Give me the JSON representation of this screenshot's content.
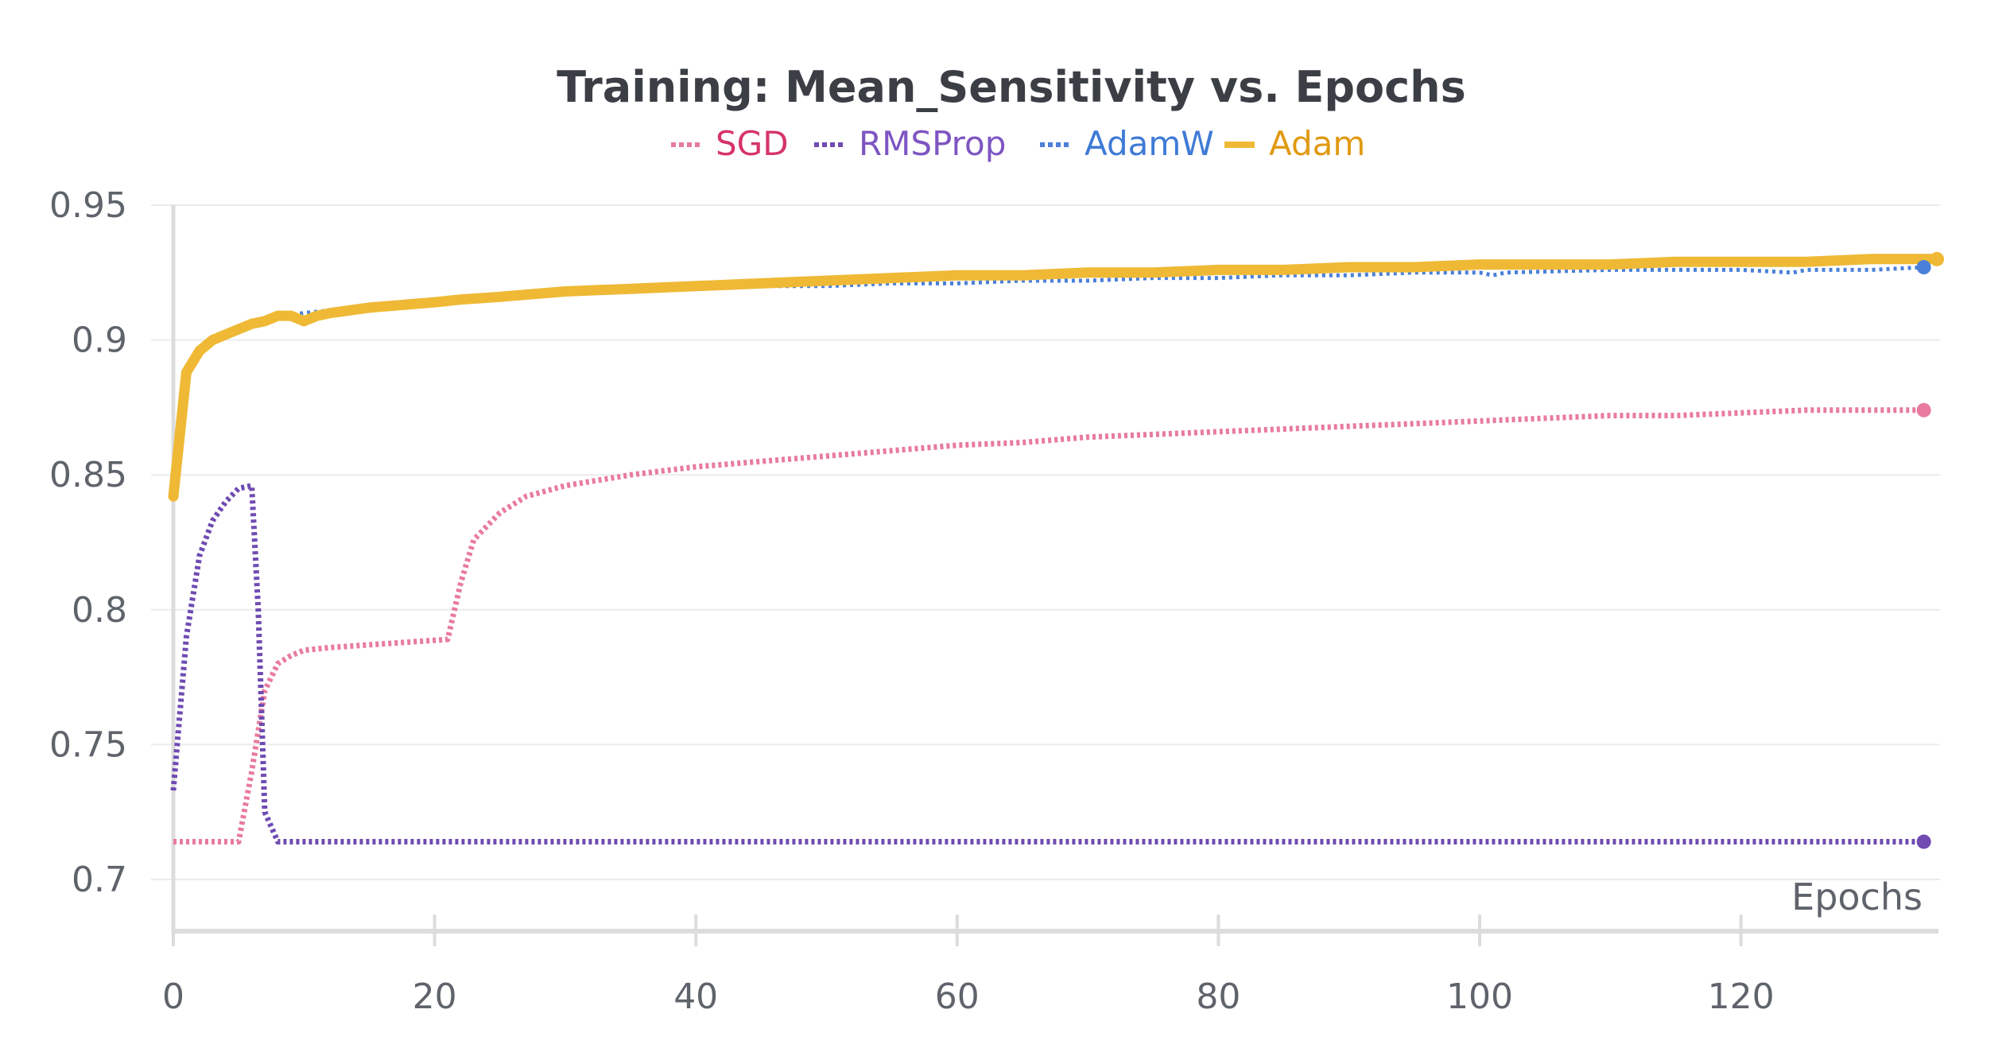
{
  "chart_data": {
    "type": "line",
    "title": "Training: Mean_Sensitivity vs. Epochs",
    "xlabel": "Epochs",
    "ylabel": "",
    "xlim": [
      0,
      135
    ],
    "ylim": [
      0.7,
      0.95
    ],
    "x_ticks": [
      "0",
      "20",
      "40",
      "60",
      "80",
      "100",
      "120"
    ],
    "y_ticks": [
      "0.7",
      "0.75",
      "0.8",
      "0.85",
      "0.9",
      "0.95"
    ],
    "grid": true,
    "legend_position": "top-center",
    "series": [
      {
        "name": "SGD",
        "color": "#e87aa0",
        "label_color": "#d6336c",
        "style": "dotted",
        "points": [
          [
            0,
            0.714
          ],
          [
            1,
            0.714
          ],
          [
            2,
            0.714
          ],
          [
            3,
            0.714
          ],
          [
            4,
            0.714
          ],
          [
            5,
            0.714
          ],
          [
            6,
            0.74
          ],
          [
            7,
            0.77
          ],
          [
            8,
            0.78
          ],
          [
            9,
            0.783
          ],
          [
            10,
            0.785
          ],
          [
            12,
            0.786
          ],
          [
            15,
            0.787
          ],
          [
            18,
            0.788
          ],
          [
            21,
            0.789
          ],
          [
            22,
            0.81
          ],
          [
            23,
            0.826
          ],
          [
            25,
            0.836
          ],
          [
            27,
            0.842
          ],
          [
            30,
            0.846
          ],
          [
            35,
            0.85
          ],
          [
            40,
            0.853
          ],
          [
            45,
            0.855
          ],
          [
            50,
            0.857
          ],
          [
            55,
            0.859
          ],
          [
            60,
            0.861
          ],
          [
            65,
            0.862
          ],
          [
            70,
            0.864
          ],
          [
            75,
            0.865
          ],
          [
            80,
            0.866
          ],
          [
            85,
            0.867
          ],
          [
            90,
            0.868
          ],
          [
            95,
            0.869
          ],
          [
            100,
            0.87
          ],
          [
            105,
            0.871
          ],
          [
            110,
            0.872
          ],
          [
            115,
            0.872
          ],
          [
            120,
            0.873
          ],
          [
            125,
            0.874
          ],
          [
            130,
            0.874
          ],
          [
            134,
            0.874
          ]
        ]
      },
      {
        "name": "RMSProp",
        "color": "#6f4bb2",
        "label_color": "#7e55c2",
        "style": "dotted",
        "points": [
          [
            0,
            0.733
          ],
          [
            1,
            0.79
          ],
          [
            2,
            0.82
          ],
          [
            3,
            0.833
          ],
          [
            4,
            0.84
          ],
          [
            5,
            0.845
          ],
          [
            6,
            0.846
          ],
          [
            6.5,
            0.8
          ],
          [
            7,
            0.725
          ],
          [
            8,
            0.714
          ],
          [
            10,
            0.714
          ],
          [
            20,
            0.714
          ],
          [
            40,
            0.714
          ],
          [
            60,
            0.714
          ],
          [
            80,
            0.714
          ],
          [
            100,
            0.714
          ],
          [
            120,
            0.714
          ],
          [
            134,
            0.714
          ]
        ]
      },
      {
        "name": "AdamW",
        "color": "#4a80d9",
        "label_color": "#3f7ad6",
        "style": "dotted",
        "points": [
          [
            0,
            0.851
          ],
          [
            1,
            0.887
          ],
          [
            2,
            0.897
          ],
          [
            3,
            0.901
          ],
          [
            4,
            0.903
          ],
          [
            5,
            0.905
          ],
          [
            6,
            0.907
          ],
          [
            8,
            0.909
          ],
          [
            10,
            0.91
          ],
          [
            12,
            0.911
          ],
          [
            15,
            0.912
          ],
          [
            20,
            0.914
          ],
          [
            25,
            0.916
          ],
          [
            30,
            0.917
          ],
          [
            35,
            0.918
          ],
          [
            40,
            0.919
          ],
          [
            45,
            0.92
          ],
          [
            50,
            0.92
          ],
          [
            55,
            0.921
          ],
          [
            60,
            0.921
          ],
          [
            65,
            0.922
          ],
          [
            70,
            0.922
          ],
          [
            75,
            0.923
          ],
          [
            80,
            0.923
          ],
          [
            85,
            0.924
          ],
          [
            90,
            0.924
          ],
          [
            95,
            0.925
          ],
          [
            100,
            0.925
          ],
          [
            101,
            0.924
          ],
          [
            102,
            0.925
          ],
          [
            110,
            0.926
          ],
          [
            120,
            0.926
          ],
          [
            124,
            0.925
          ],
          [
            125,
            0.926
          ],
          [
            130,
            0.926
          ],
          [
            134,
            0.927
          ]
        ]
      },
      {
        "name": "Adam",
        "color": "#efb935",
        "label_color": "#e09a10",
        "style": "solid",
        "points": [
          [
            0,
            0.842
          ],
          [
            1,
            0.888
          ],
          [
            2,
            0.896
          ],
          [
            3,
            0.9
          ],
          [
            4,
            0.902
          ],
          [
            5,
            0.904
          ],
          [
            6,
            0.906
          ],
          [
            7,
            0.907
          ],
          [
            8,
            0.909
          ],
          [
            9,
            0.909
          ],
          [
            10,
            0.907
          ],
          [
            11,
            0.909
          ],
          [
            12,
            0.91
          ],
          [
            15,
            0.912
          ],
          [
            20,
            0.914
          ],
          [
            22,
            0.915
          ],
          [
            25,
            0.916
          ],
          [
            30,
            0.918
          ],
          [
            35,
            0.919
          ],
          [
            40,
            0.92
          ],
          [
            45,
            0.921
          ],
          [
            50,
            0.922
          ],
          [
            55,
            0.923
          ],
          [
            60,
            0.924
          ],
          [
            65,
            0.924
          ],
          [
            70,
            0.925
          ],
          [
            75,
            0.925
          ],
          [
            80,
            0.926
          ],
          [
            85,
            0.926
          ],
          [
            90,
            0.927
          ],
          [
            95,
            0.927
          ],
          [
            100,
            0.928
          ],
          [
            105,
            0.928
          ],
          [
            110,
            0.928
          ],
          [
            115,
            0.929
          ],
          [
            120,
            0.929
          ],
          [
            125,
            0.929
          ],
          [
            130,
            0.93
          ],
          [
            135,
            0.93
          ]
        ]
      }
    ]
  }
}
